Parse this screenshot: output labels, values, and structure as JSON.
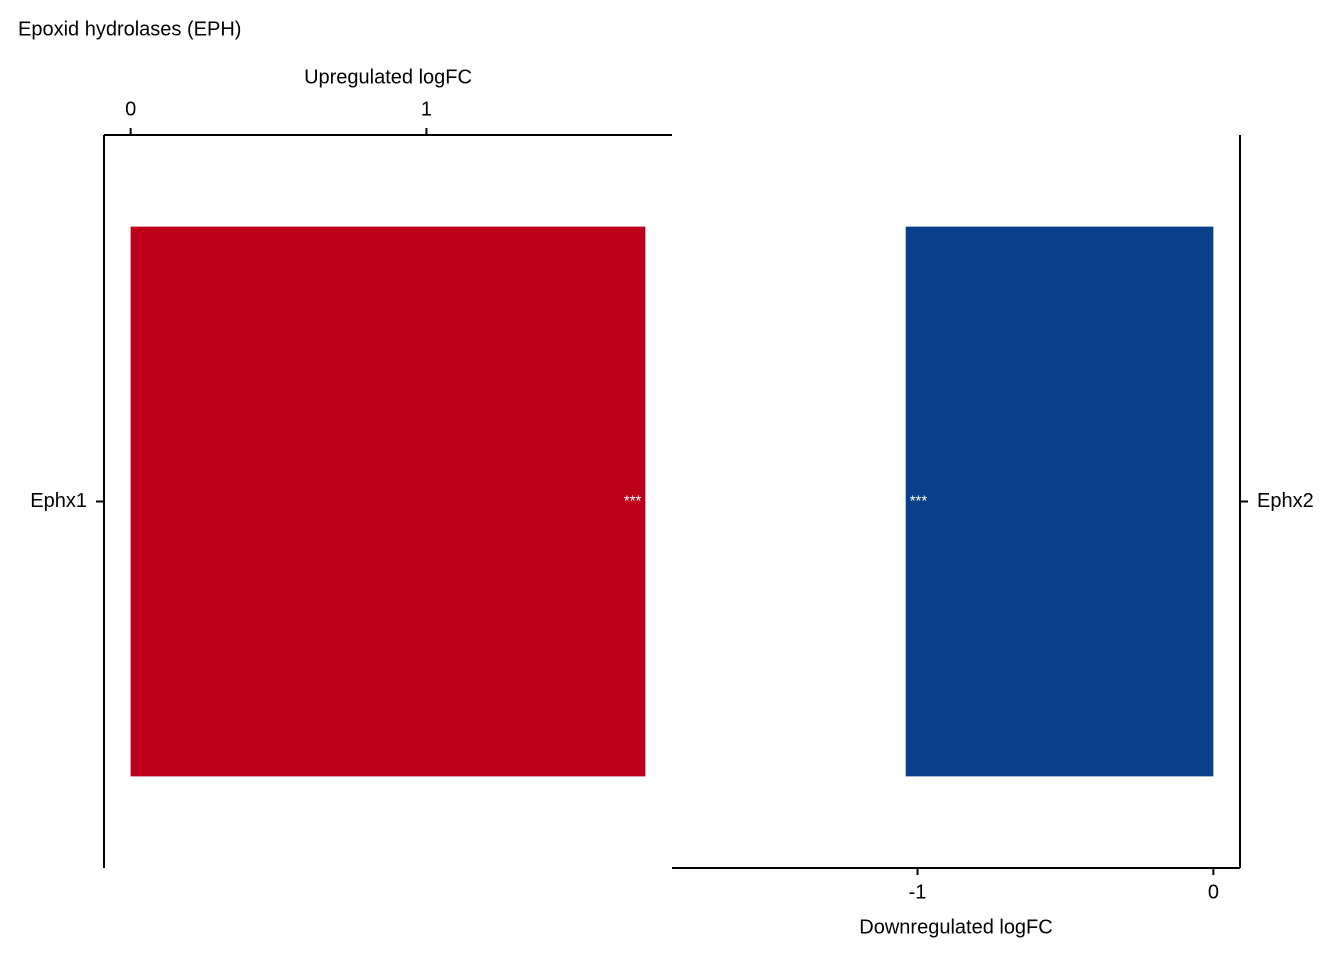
{
  "chart_data": [
    {
      "type": "bar",
      "orientation": "horizontal",
      "title": "Epoxid hydrolases (EPH)",
      "xlabel": "Upregulated logFC",
      "categories": [
        "Ephx1"
      ],
      "values": [
        1.74
      ],
      "value_labels": [
        "***"
      ],
      "color": "#bd001a",
      "xlim": [
        -0.09,
        1.83
      ],
      "xticks": [
        0,
        1
      ],
      "x_axis_position": "top",
      "y_axis_position": "left"
    },
    {
      "type": "bar",
      "orientation": "horizontal",
      "xlabel": "Downregulated logFC",
      "categories": [
        "Ephx2"
      ],
      "values": [
        -1.04
      ],
      "value_labels": [
        "***"
      ],
      "color": "#08408b",
      "xlim": [
        -1.83,
        0.09
      ],
      "xticks": [
        -1,
        0
      ],
      "x_axis_position": "bottom",
      "y_axis_position": "right"
    }
  ]
}
